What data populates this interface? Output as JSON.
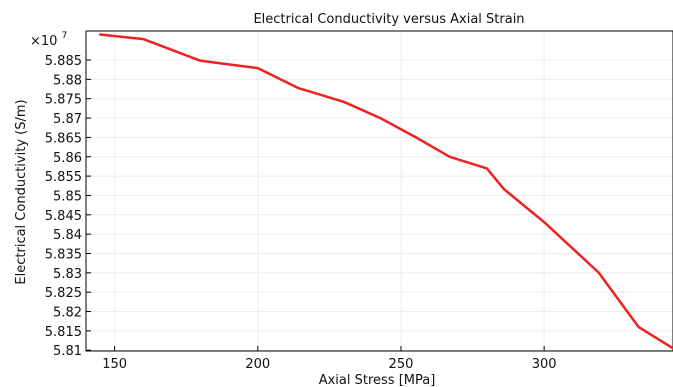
{
  "chart_data": {
    "type": "line",
    "title": "Electrical Conductivity versus Axial Strain",
    "xlabel": "Axial Stress [MPa]",
    "ylabel": "Electrical Conductivity (S/m)",
    "y_multiplier_base": "×10",
    "y_multiplier_exponent": "7",
    "xlim": [
      140,
      345
    ],
    "ylim": [
      5.8098,
      5.8925
    ],
    "x_ticks": [
      150,
      200,
      250,
      300
    ],
    "y_ticks": [
      5.81,
      5.815,
      5.82,
      5.825,
      5.83,
      5.835,
      5.84,
      5.845,
      5.85,
      5.855,
      5.86,
      5.865,
      5.87,
      5.875,
      5.88,
      5.885
    ],
    "x_tick_labels": [
      "150",
      "200",
      "250",
      "300"
    ],
    "y_tick_labels": [
      "5.81",
      "5.815",
      "5.82",
      "5.825",
      "5.83",
      "5.835",
      "5.84",
      "5.845",
      "5.85",
      "5.855",
      "5.86",
      "5.865",
      "5.87",
      "5.875",
      "5.88",
      "5.885"
    ],
    "grid": true,
    "line_color": "#ee2222",
    "grid_color": "#ececec",
    "axis_color": "#000000",
    "series": [
      {
        "x": [
          145,
          160,
          180,
          200,
          214,
          230,
          243,
          255,
          267,
          280,
          286,
          300,
          319,
          333,
          345
        ],
        "values": [
          5.8916,
          5.8904,
          5.8848,
          5.8829,
          5.8778,
          5.8742,
          5.8699,
          5.8651,
          5.86,
          5.857,
          5.8516,
          5.8431,
          5.8301,
          5.816,
          5.8105
        ]
      }
    ]
  }
}
